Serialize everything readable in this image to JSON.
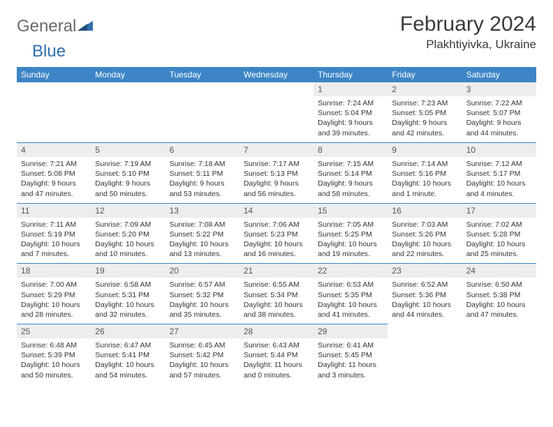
{
  "logo": {
    "text1": "General",
    "text2": "Blue",
    "text_color": "#6a6a6a",
    "accent_color": "#2f6fb0"
  },
  "title": "February 2024",
  "location": "Plakhtiyivka, Ukraine",
  "header_bg": "#3d85c6",
  "header_fg": "#ffffff",
  "daynum_bg": "#ededed",
  "weekdays": [
    "Sunday",
    "Monday",
    "Tuesday",
    "Wednesday",
    "Thursday",
    "Friday",
    "Saturday"
  ],
  "weeks": [
    [
      null,
      null,
      null,
      null,
      {
        "n": "1",
        "sunrise": "7:24 AM",
        "sunset": "5:04 PM",
        "daylight": "9 hours and 39 minutes."
      },
      {
        "n": "2",
        "sunrise": "7:23 AM",
        "sunset": "5:05 PM",
        "daylight": "9 hours and 42 minutes."
      },
      {
        "n": "3",
        "sunrise": "7:22 AM",
        "sunset": "5:07 PM",
        "daylight": "9 hours and 44 minutes."
      }
    ],
    [
      {
        "n": "4",
        "sunrise": "7:21 AM",
        "sunset": "5:08 PM",
        "daylight": "9 hours and 47 minutes."
      },
      {
        "n": "5",
        "sunrise": "7:19 AM",
        "sunset": "5:10 PM",
        "daylight": "9 hours and 50 minutes."
      },
      {
        "n": "6",
        "sunrise": "7:18 AM",
        "sunset": "5:11 PM",
        "daylight": "9 hours and 53 minutes."
      },
      {
        "n": "7",
        "sunrise": "7:17 AM",
        "sunset": "5:13 PM",
        "daylight": "9 hours and 56 minutes."
      },
      {
        "n": "8",
        "sunrise": "7:15 AM",
        "sunset": "5:14 PM",
        "daylight": "9 hours and 58 minutes."
      },
      {
        "n": "9",
        "sunrise": "7:14 AM",
        "sunset": "5:16 PM",
        "daylight": "10 hours and 1 minute."
      },
      {
        "n": "10",
        "sunrise": "7:12 AM",
        "sunset": "5:17 PM",
        "daylight": "10 hours and 4 minutes."
      }
    ],
    [
      {
        "n": "11",
        "sunrise": "7:11 AM",
        "sunset": "5:19 PM",
        "daylight": "10 hours and 7 minutes."
      },
      {
        "n": "12",
        "sunrise": "7:09 AM",
        "sunset": "5:20 PM",
        "daylight": "10 hours and 10 minutes."
      },
      {
        "n": "13",
        "sunrise": "7:08 AM",
        "sunset": "5:22 PM",
        "daylight": "10 hours and 13 minutes."
      },
      {
        "n": "14",
        "sunrise": "7:06 AM",
        "sunset": "5:23 PM",
        "daylight": "10 hours and 16 minutes."
      },
      {
        "n": "15",
        "sunrise": "7:05 AM",
        "sunset": "5:25 PM",
        "daylight": "10 hours and 19 minutes."
      },
      {
        "n": "16",
        "sunrise": "7:03 AM",
        "sunset": "5:26 PM",
        "daylight": "10 hours and 22 minutes."
      },
      {
        "n": "17",
        "sunrise": "7:02 AM",
        "sunset": "5:28 PM",
        "daylight": "10 hours and 25 minutes."
      }
    ],
    [
      {
        "n": "18",
        "sunrise": "7:00 AM",
        "sunset": "5:29 PM",
        "daylight": "10 hours and 28 minutes."
      },
      {
        "n": "19",
        "sunrise": "6:58 AM",
        "sunset": "5:31 PM",
        "daylight": "10 hours and 32 minutes."
      },
      {
        "n": "20",
        "sunrise": "6:57 AM",
        "sunset": "5:32 PM",
        "daylight": "10 hours and 35 minutes."
      },
      {
        "n": "21",
        "sunrise": "6:55 AM",
        "sunset": "5:34 PM",
        "daylight": "10 hours and 38 minutes."
      },
      {
        "n": "22",
        "sunrise": "6:53 AM",
        "sunset": "5:35 PM",
        "daylight": "10 hours and 41 minutes."
      },
      {
        "n": "23",
        "sunrise": "6:52 AM",
        "sunset": "5:36 PM",
        "daylight": "10 hours and 44 minutes."
      },
      {
        "n": "24",
        "sunrise": "6:50 AM",
        "sunset": "5:38 PM",
        "daylight": "10 hours and 47 minutes."
      }
    ],
    [
      {
        "n": "25",
        "sunrise": "6:48 AM",
        "sunset": "5:39 PM",
        "daylight": "10 hours and 50 minutes."
      },
      {
        "n": "26",
        "sunrise": "6:47 AM",
        "sunset": "5:41 PM",
        "daylight": "10 hours and 54 minutes."
      },
      {
        "n": "27",
        "sunrise": "6:45 AM",
        "sunset": "5:42 PM",
        "daylight": "10 hours and 57 minutes."
      },
      {
        "n": "28",
        "sunrise": "6:43 AM",
        "sunset": "5:44 PM",
        "daylight": "11 hours and 0 minutes."
      },
      {
        "n": "29",
        "sunrise": "6:41 AM",
        "sunset": "5:45 PM",
        "daylight": "11 hours and 3 minutes."
      },
      null,
      null
    ]
  ],
  "labels": {
    "sunrise": "Sunrise:",
    "sunset": "Sunset:",
    "daylight": "Daylight:"
  }
}
